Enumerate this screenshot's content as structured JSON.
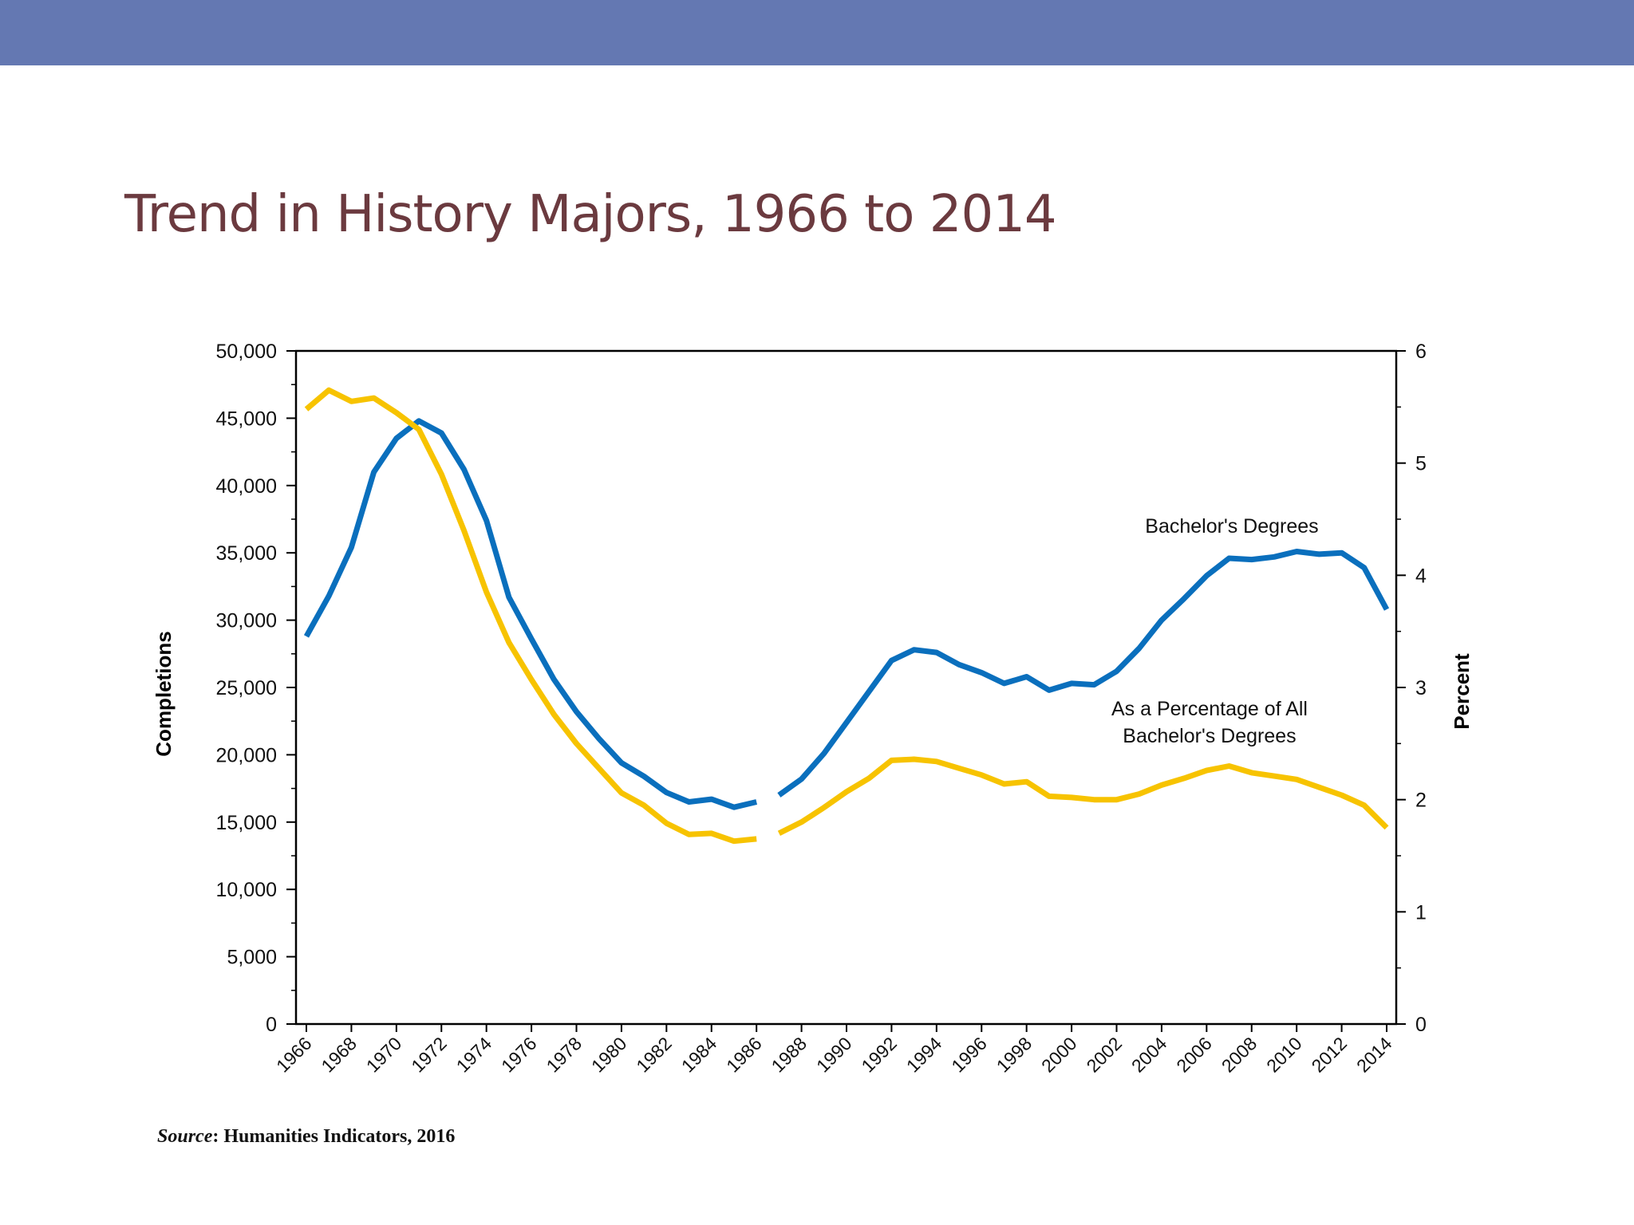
{
  "slide": {
    "title": "Trend in History Majors, 1966 to 2014",
    "source_label": "Source",
    "source_text": ": Humanities Indicators, 2016"
  },
  "colors": {
    "header_bar": "#6478b2",
    "title": "#6b3a3f",
    "bachelors_series": "#0a6fbd",
    "percentage_series": "#f7c300"
  },
  "chart_data": {
    "type": "line",
    "title": "",
    "xlabel": "",
    "ylabel": "Completions",
    "y2label": "Percent",
    "xlim": [
      1966,
      2014
    ],
    "ylim": [
      0,
      50000
    ],
    "y2lim": [
      0,
      6
    ],
    "y_ticks": [
      "0",
      "5,000",
      "10,000",
      "15,000",
      "20,000",
      "25,000",
      "30,000",
      "35,000",
      "40,000",
      "45,000",
      "50,000"
    ],
    "y2_ticks": [
      "0",
      "1",
      "2",
      "3",
      "4",
      "5",
      "6"
    ],
    "x_ticks": [
      "1966",
      "1968",
      "1970",
      "1972",
      "1974",
      "1976",
      "1978",
      "1980",
      "1982",
      "1984",
      "1986",
      "1988",
      "1990",
      "1992",
      "1994",
      "1996",
      "1998",
      "2000",
      "2002",
      "2004",
      "2006",
      "2008",
      "2010",
      "2012",
      "2014"
    ],
    "grid": false,
    "gap_between": [
      1986,
      1987
    ],
    "series": [
      {
        "name": "Bachelor's Degrees",
        "axis": "left",
        "color": "#0a6fbd",
        "x": [
          1966,
          1967,
          1968,
          1969,
          1970,
          1971,
          1972,
          1973,
          1974,
          1975,
          1976,
          1977,
          1978,
          1979,
          1980,
          1981,
          1982,
          1983,
          1984,
          1985,
          1986,
          1987,
          1988,
          1989,
          1990,
          1991,
          1992,
          1993,
          1994,
          1995,
          1996,
          1997,
          1998,
          1999,
          2000,
          2001,
          2002,
          2003,
          2004,
          2005,
          2006,
          2007,
          2008,
          2009,
          2010,
          2011,
          2012,
          2013,
          2014
        ],
        "values": [
          28800,
          31800,
          35400,
          41000,
          43500,
          44800,
          43900,
          41200,
          37400,
          31700,
          28600,
          25600,
          23200,
          21200,
          19400,
          18400,
          17200,
          16500,
          16700,
          16100,
          16500,
          17000,
          18200,
          20100,
          22400,
          24700,
          27000,
          27800,
          27600,
          26700,
          26100,
          25300,
          25800,
          24800,
          25300,
          25200,
          26200,
          27900,
          30000,
          31600,
          33300,
          34600,
          34500,
          34700,
          35100,
          34900,
          35000,
          33900,
          30800
        ]
      },
      {
        "name": "As a Percentage of All Bachelor's Degrees",
        "axis": "right",
        "color": "#f7c300",
        "x": [
          1966,
          1967,
          1968,
          1969,
          1970,
          1971,
          1972,
          1973,
          1974,
          1975,
          1976,
          1977,
          1978,
          1979,
          1980,
          1981,
          1982,
          1983,
          1984,
          1985,
          1986,
          1987,
          1988,
          1989,
          1990,
          1991,
          1992,
          1993,
          1994,
          1995,
          1996,
          1997,
          1998,
          1999,
          2000,
          2001,
          2002,
          2003,
          2004,
          2005,
          2006,
          2007,
          2008,
          2009,
          2010,
          2011,
          2012,
          2013,
          2014
        ],
        "values": [
          5.48,
          5.65,
          5.55,
          5.58,
          5.45,
          5.3,
          4.9,
          4.4,
          3.85,
          3.4,
          3.07,
          2.76,
          2.5,
          2.28,
          2.06,
          1.95,
          1.79,
          1.69,
          1.7,
          1.63,
          1.65,
          1.7,
          1.8,
          1.93,
          2.07,
          2.19,
          2.35,
          2.36,
          2.34,
          2.28,
          2.22,
          2.14,
          2.16,
          2.03,
          2.02,
          2.0,
          2.0,
          2.05,
          2.13,
          2.19,
          2.26,
          2.3,
          2.24,
          2.21,
          2.18,
          2.11,
          2.04,
          1.95,
          1.75
        ]
      }
    ],
    "annotations": [
      {
        "text": "Bachelor's Degrees"
      },
      {
        "text": "As a Percentage of All"
      },
      {
        "text": "Bachelor's Degrees"
      }
    ]
  }
}
